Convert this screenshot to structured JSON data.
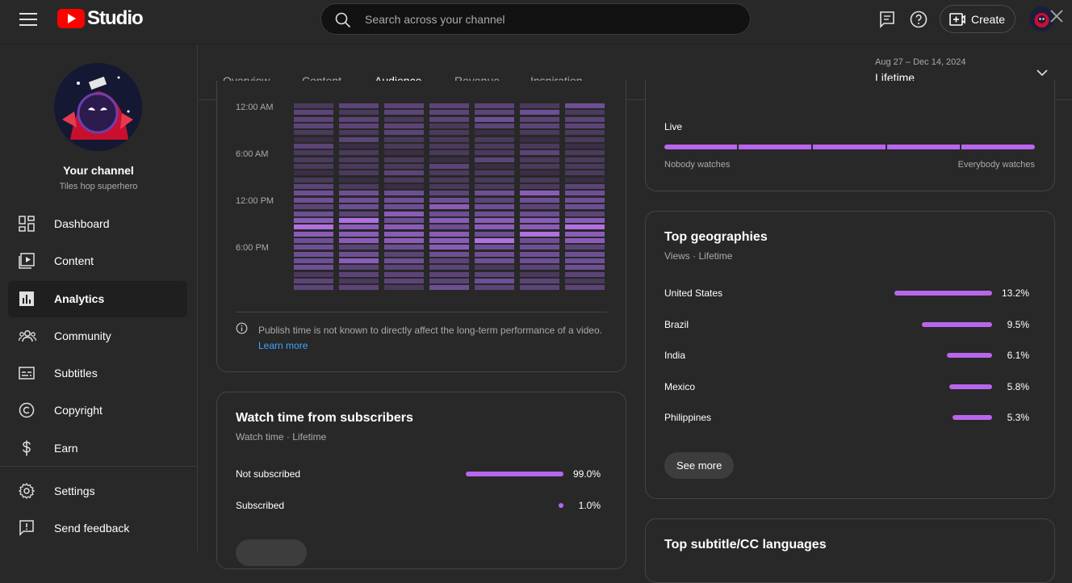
{
  "app": {
    "title": "Studio"
  },
  "search": {
    "placeholder": "Search across your channel"
  },
  "toolbar": {
    "create_label": "Create"
  },
  "channel": {
    "title": "Your channel",
    "name": "Tiles hop superhero"
  },
  "sidebar": {
    "items": [
      {
        "label": "Dashboard",
        "icon": "dashboard-icon"
      },
      {
        "label": "Content",
        "icon": "content-icon"
      },
      {
        "label": "Analytics",
        "icon": "analytics-icon",
        "active": true
      },
      {
        "label": "Community",
        "icon": "community-icon"
      },
      {
        "label": "Subtitles",
        "icon": "subtitles-icon"
      },
      {
        "label": "Copyright",
        "icon": "copyright-icon"
      },
      {
        "label": "Earn",
        "icon": "earn-icon"
      },
      {
        "label": "Settings",
        "icon": "gear-icon"
      },
      {
        "label": "Send feedback",
        "icon": "feedback-icon"
      }
    ]
  },
  "tabs": [
    {
      "label": "Overview"
    },
    {
      "label": "Content"
    },
    {
      "label": "Audience",
      "active": true
    },
    {
      "label": "Revenue"
    },
    {
      "label": "Inspiration"
    }
  ],
  "date_range": {
    "range": "Aug 27 – Dec 14, 2024",
    "label": "Lifetime"
  },
  "heatmap": {
    "hour_labels": [
      "12:00 AM",
      "6:00 AM",
      "12:00 PM",
      "6:00 PM"
    ],
    "note": "Publish time is not known to directly affect the long-term performance of a video.",
    "learn_more": "Learn more"
  },
  "live_card": {
    "label": "Live",
    "left": "Nobody watches",
    "right": "Everybody watches"
  },
  "subscribers": {
    "title": "Watch time from subscribers",
    "subtitle": "Watch time · Lifetime",
    "rows": [
      {
        "label": "Not subscribed",
        "value": "99.0%",
        "pct": 99.0
      },
      {
        "label": "Subscribed",
        "value": "1.0%",
        "pct": 1.0
      }
    ]
  },
  "geographies": {
    "title": "Top geographies",
    "subtitle": "Views · Lifetime",
    "rows": [
      {
        "label": "United States",
        "value": "13.2%",
        "pct": 13.2
      },
      {
        "label": "Brazil",
        "value": "9.5%",
        "pct": 9.5
      },
      {
        "label": "India",
        "value": "6.1%",
        "pct": 6.1
      },
      {
        "label": "Mexico",
        "value": "5.8%",
        "pct": 5.8
      },
      {
        "label": "Philippines",
        "value": "5.3%",
        "pct": 5.3
      }
    ],
    "see_more": "See more"
  },
  "subtitles_card": {
    "title": "Top subtitle/CC languages"
  },
  "colors": {
    "accent": "#b867ec",
    "brand_red": "#ff0000",
    "link": "#3ea6ff"
  }
}
